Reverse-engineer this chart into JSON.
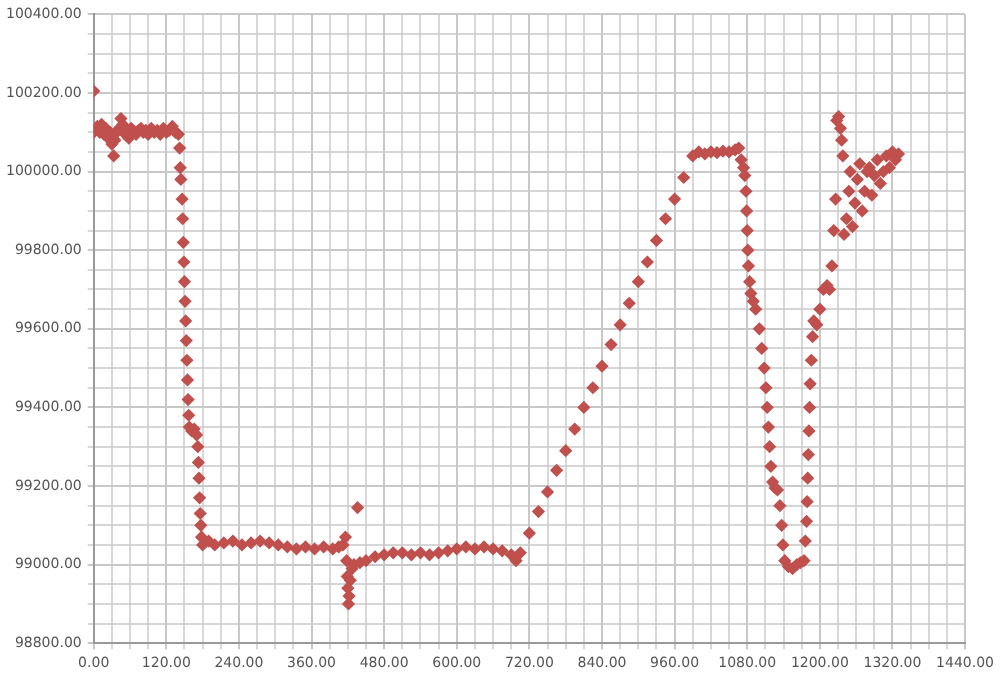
{
  "chart_data": {
    "type": "scatter",
    "grid": true,
    "marker": "diamond",
    "legend": false,
    "xlim": [
      0,
      1440
    ],
    "xticks": [
      {
        "value": 0,
        "label": "0.00"
      },
      {
        "value": 30,
        "label": null
      },
      {
        "value": 60,
        "label": null
      },
      {
        "value": 90,
        "label": null
      },
      {
        "value": 120,
        "label": "120.00"
      },
      {
        "value": 150,
        "label": null
      },
      {
        "value": 180,
        "label": null
      },
      {
        "value": 210,
        "label": null
      },
      {
        "value": 240,
        "label": "240.00"
      },
      {
        "value": 270,
        "label": null
      },
      {
        "value": 300,
        "label": null
      },
      {
        "value": 330,
        "label": null
      },
      {
        "value": 360,
        "label": "360.00"
      },
      {
        "value": 390,
        "label": null
      },
      {
        "value": 420,
        "label": null
      },
      {
        "value": 450,
        "label": null
      },
      {
        "value": 480,
        "label": "480.00"
      },
      {
        "value": 510,
        "label": null
      },
      {
        "value": 540,
        "label": null
      },
      {
        "value": 570,
        "label": null
      },
      {
        "value": 600,
        "label": "600.00"
      },
      {
        "value": 630,
        "label": null
      },
      {
        "value": 660,
        "label": null
      },
      {
        "value": 690,
        "label": null
      },
      {
        "value": 720,
        "label": "720.00"
      },
      {
        "value": 750,
        "label": null
      },
      {
        "value": 780,
        "label": null
      },
      {
        "value": 810,
        "label": null
      },
      {
        "value": 840,
        "label": "840.00"
      },
      {
        "value": 870,
        "label": null
      },
      {
        "value": 900,
        "label": null
      },
      {
        "value": 930,
        "label": null
      },
      {
        "value": 960,
        "label": "960.00"
      },
      {
        "value": 990,
        "label": null
      },
      {
        "value": 1020,
        "label": null
      },
      {
        "value": 1050,
        "label": null
      },
      {
        "value": 1080,
        "label": "1080.00"
      },
      {
        "value": 1110,
        "label": null
      },
      {
        "value": 1140,
        "label": null
      },
      {
        "value": 1170,
        "label": null
      },
      {
        "value": 1200,
        "label": "1200.00"
      },
      {
        "value": 1230,
        "label": null
      },
      {
        "value": 1260,
        "label": null
      },
      {
        "value": 1290,
        "label": null
      },
      {
        "value": 1320,
        "label": "1320.00"
      },
      {
        "value": 1350,
        "label": null
      },
      {
        "value": 1380,
        "label": null
      },
      {
        "value": 1410,
        "label": null
      },
      {
        "value": 1440,
        "label": "1440.00"
      }
    ],
    "ylim": [
      98800,
      100400
    ],
    "yticks": [
      {
        "value": 98800,
        "label": "98800.00"
      },
      {
        "value": 98850,
        "label": null
      },
      {
        "value": 98900,
        "label": null
      },
      {
        "value": 98950,
        "label": null
      },
      {
        "value": 99000,
        "label": "99000.00"
      },
      {
        "value": 99050,
        "label": null
      },
      {
        "value": 99100,
        "label": null
      },
      {
        "value": 99150,
        "label": null
      },
      {
        "value": 99200,
        "label": "99200.00"
      },
      {
        "value": 99250,
        "label": null
      },
      {
        "value": 99300,
        "label": null
      },
      {
        "value": 99350,
        "label": null
      },
      {
        "value": 99400,
        "label": "99400.00"
      },
      {
        "value": 99450,
        "label": null
      },
      {
        "value": 99500,
        "label": null
      },
      {
        "value": 99550,
        "label": null
      },
      {
        "value": 99600,
        "label": "99600.00"
      },
      {
        "value": 99650,
        "label": null
      },
      {
        "value": 99700,
        "label": null
      },
      {
        "value": 99750,
        "label": null
      },
      {
        "value": 99800,
        "label": "99800.00"
      },
      {
        "value": 99850,
        "label": null
      },
      {
        "value": 99900,
        "label": null
      },
      {
        "value": 99950,
        "label": null
      },
      {
        "value": 100000,
        "label": "100000.00"
      },
      {
        "value": 100050,
        "label": null
      },
      {
        "value": 100100,
        "label": null
      },
      {
        "value": 100150,
        "label": null
      },
      {
        "value": 100200,
        "label": "100200.00"
      },
      {
        "value": 100250,
        "label": null
      },
      {
        "value": 100300,
        "label": null
      },
      {
        "value": 100350,
        "label": null
      },
      {
        "value": 100400,
        "label": "100400.00"
      }
    ],
    "series": [
      {
        "color": "#c0504d",
        "x": [
          0,
          0,
          3,
          6,
          10,
          13,
          17,
          20,
          24,
          27,
          30,
          33,
          35,
          38,
          42,
          45,
          48,
          52,
          58,
          62,
          70,
          74,
          78,
          82,
          86,
          90,
          95,
          100,
          105,
          110,
          115,
          120,
          125,
          130,
          135,
          140,
          142,
          143,
          144,
          146,
          147,
          148,
          149,
          150,
          151,
          152,
          153,
          154,
          155,
          156,
          157,
          158,
          162,
          166,
          170,
          172,
          173,
          174,
          175,
          176,
          177,
          178,
          180,
          190,
          200,
          215,
          230,
          245,
          260,
          275,
          290,
          305,
          320,
          335,
          350,
          365,
          380,
          395,
          405,
          412,
          416,
          418,
          419,
          420,
          421,
          422,
          424,
          427,
          430,
          436,
          440,
          450,
          465,
          480,
          495,
          510,
          525,
          540,
          555,
          570,
          585,
          600,
          615,
          630,
          645,
          660,
          675,
          690,
          698,
          705,
          720,
          735,
          750,
          765,
          780,
          795,
          810,
          825,
          840,
          855,
          870,
          885,
          900,
          915,
          930,
          945,
          960,
          975,
          990,
          1000,
          1010,
          1020,
          1030,
          1040,
          1050,
          1060,
          1066,
          1070,
          1074,
          1076,
          1078,
          1079,
          1080,
          1081,
          1082,
          1084,
          1086,
          1090,
          1094,
          1100,
          1104,
          1108,
          1111,
          1113,
          1115,
          1117,
          1119,
          1122,
          1126,
          1130,
          1134,
          1137,
          1139,
          1142,
          1148,
          1155,
          1162,
          1168,
          1174,
          1176,
          1178,
          1179,
          1180,
          1181,
          1182,
          1183,
          1184,
          1186,
          1188,
          1190,
          1195,
          1200,
          1206,
          1212,
          1216,
          1220,
          1223,
          1226,
          1228,
          1231,
          1234,
          1236,
          1238,
          1240,
          1244,
          1248,
          1250,
          1254,
          1258,
          1262,
          1266,
          1270,
          1274,
          1278,
          1282,
          1286,
          1290,
          1295,
          1300,
          1305,
          1310,
          1315,
          1320,
          1325,
          1330
        ],
        "values": [
          100100,
          100205,
          100110,
          100115,
          100100,
          100120,
          100095,
          100110,
          100085,
          100100,
          100070,
          100040,
          100080,
          100100,
          100110,
          100135,
          100120,
          100095,
          100085,
          100110,
          100095,
          100105,
          100110,
          100100,
          100105,
          100095,
          100110,
          100100,
          100105,
          100095,
          100110,
          100100,
          100105,
          100115,
          100100,
          100095,
          100060,
          100010,
          99980,
          99930,
          99880,
          99820,
          99770,
          99720,
          99670,
          99620,
          99570,
          99520,
          99470,
          99420,
          99380,
          99350,
          99340,
          99345,
          99330,
          99300,
          99260,
          99220,
          99170,
          99130,
          99100,
          99070,
          99050,
          99060,
          99050,
          99055,
          99060,
          99050,
          99055,
          99060,
          99055,
          99050,
          99045,
          99040,
          99045,
          99040,
          99045,
          99040,
          99045,
          99050,
          99070,
          99010,
          98970,
          98940,
          98900,
          98920,
          98960,
          98990,
          99000,
          99145,
          99005,
          99010,
          99020,
          99025,
          99030,
          99030,
          99025,
          99030,
          99025,
          99030,
          99035,
          99040,
          99045,
          99040,
          99045,
          99040,
          99035,
          99025,
          99010,
          99030,
          99080,
          99135,
          99185,
          99240,
          99290,
          99345,
          99400,
          99450,
          99505,
          99560,
          99610,
          99665,
          99720,
          99770,
          99825,
          99880,
          99930,
          99985,
          100040,
          100050,
          100045,
          100050,
          100048,
          100052,
          100050,
          100055,
          100060,
          100030,
          100010,
          99990,
          99950,
          99900,
          99850,
          99800,
          99760,
          99720,
          99690,
          99670,
          99650,
          99600,
          99550,
          99500,
          99450,
          99400,
          99350,
          99300,
          99250,
          99210,
          99195,
          99190,
          99150,
          99100,
          99050,
          99010,
          98995,
          98990,
          99000,
          99005,
          99010,
          99060,
          99110,
          99160,
          99220,
          99280,
          99340,
          99400,
          99460,
          99520,
          99580,
          99620,
          99610,
          99650,
          99700,
          99710,
          99700,
          99760,
          99850,
          99930,
          100130,
          100140,
          100110,
          100080,
          100040,
          99840,
          99880,
          99950,
          100000,
          99860,
          99920,
          99980,
          100020,
          99900,
          99950,
          100000,
          100010,
          99940,
          99990,
          100030,
          99970,
          100000,
          100040,
          100010,
          100050,
          100030,
          100045
        ]
      }
    ]
  }
}
